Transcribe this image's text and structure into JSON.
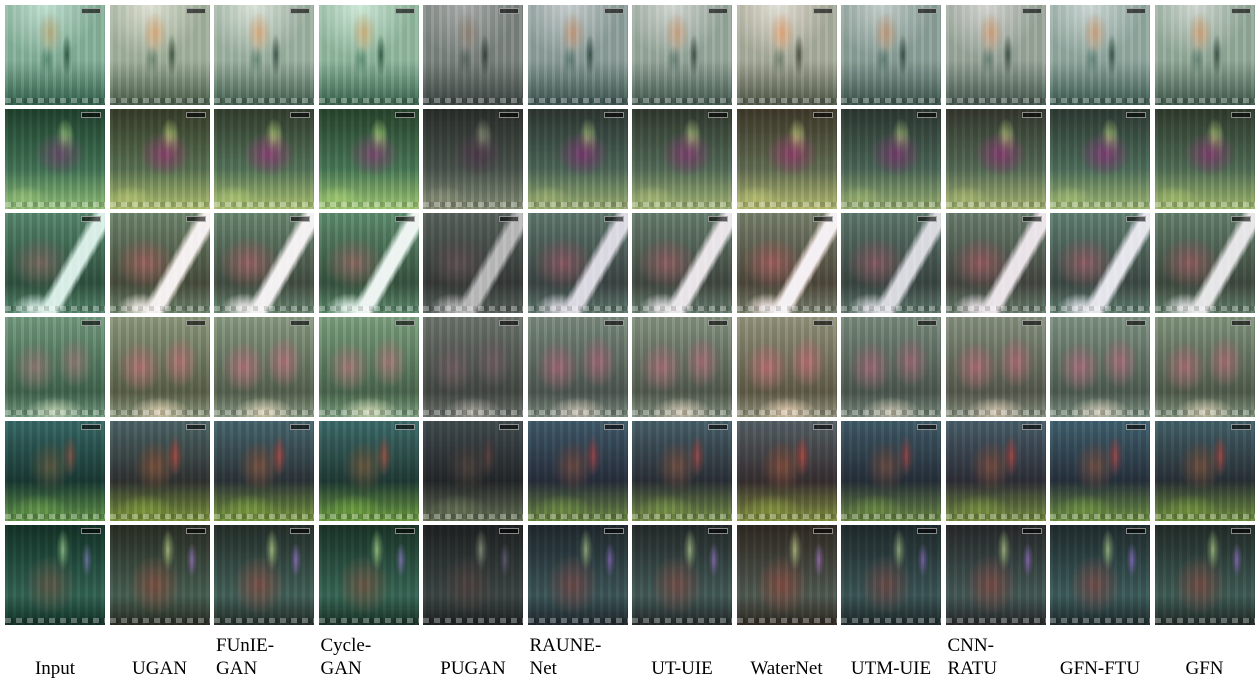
{
  "columns": [
    {
      "id": "input",
      "lines": [
        "Input"
      ],
      "align": "center"
    },
    {
      "id": "ugan",
      "lines": [
        "UGAN"
      ],
      "align": "center"
    },
    {
      "id": "funie",
      "lines": [
        "FUnIE-",
        "GAN"
      ],
      "align": "left"
    },
    {
      "id": "cycle",
      "lines": [
        "Cycle-",
        "GAN"
      ],
      "align": "left"
    },
    {
      "id": "pugan",
      "lines": [
        "PUGAN"
      ],
      "align": "center"
    },
    {
      "id": "raune",
      "lines": [
        "RAUNE-",
        "Net"
      ],
      "align": "left"
    },
    {
      "id": "utuie",
      "lines": [
        "UT-UIE"
      ],
      "align": "center"
    },
    {
      "id": "waternet",
      "lines": [
        "WaterNet"
      ],
      "align": "center"
    },
    {
      "id": "utmuie",
      "lines": [
        "UTM-UIE"
      ],
      "align": "center"
    },
    {
      "id": "cnnratu",
      "lines": [
        "CNN-",
        "RATU"
      ],
      "align": "left"
    },
    {
      "id": "gfnftu",
      "lines": [
        "GFN-FTU"
      ],
      "align": "center"
    },
    {
      "id": "gfn",
      "lines": [
        "GFN"
      ],
      "align": "center"
    }
  ],
  "rows": [
    {
      "id": "row-diver",
      "scene": "diver",
      "colors": [
        "#8fa79a",
        "#5e7f72",
        "#c9a27b",
        "#3d5a4e"
      ]
    },
    {
      "id": "row-coral-1",
      "scene": "coral",
      "colors": [
        "#4b6b55",
        "#7a3d6e",
        "#9bb66a",
        "#2d3a2f"
      ]
    },
    {
      "id": "row-tube",
      "scene": "tube",
      "colors": [
        "#5f7d6c",
        "#8a5a5e",
        "#e6e6ea",
        "#3b4840"
      ]
    },
    {
      "id": "row-coral-2",
      "scene": "coral2",
      "colors": [
        "#7b8f7b",
        "#a06a72",
        "#c7c1a8",
        "#4c5a4c"
      ]
    },
    {
      "id": "row-coral-3",
      "scene": "coral3",
      "colors": [
        "#3f5f6a",
        "#6b4b3e",
        "#6c8f3c",
        "#263038"
      ]
    },
    {
      "id": "row-coral-4",
      "scene": "coral4",
      "colors": [
        "#3b5a56",
        "#6e4b45",
        "#7f9b6a",
        "#1f2b2a"
      ]
    }
  ],
  "methodTints": [
    {
      "id": "input",
      "tint": "#2f7a55",
      "alpha": 0.3,
      "bright": 1.0
    },
    {
      "id": "ugan",
      "tint": "#b38f66",
      "alpha": 0.2,
      "bright": 1.05
    },
    {
      "id": "funie",
      "tint": "#a3907a",
      "alpha": 0.15,
      "bright": 1.05
    },
    {
      "id": "cycle",
      "tint": "#3c8c4c",
      "alpha": 0.18,
      "bright": 1.05
    },
    {
      "id": "pugan",
      "tint": "#3a3a3a",
      "alpha": 0.35,
      "bright": 0.8
    },
    {
      "id": "raune",
      "tint": "#6a5a7a",
      "alpha": 0.18,
      "bright": 0.95
    },
    {
      "id": "utuie",
      "tint": "#a09090",
      "alpha": 0.25,
      "bright": 1.0
    },
    {
      "id": "waternet",
      "tint": "#c0705a",
      "alpha": 0.22,
      "bright": 1.05
    },
    {
      "id": "utmuie",
      "tint": "#808090",
      "alpha": 0.2,
      "bright": 0.95
    },
    {
      "id": "cnnratu",
      "tint": "#9a6a70",
      "alpha": 0.18,
      "bright": 1.0
    },
    {
      "id": "gfnftu",
      "tint": "#6a6a80",
      "alpha": 0.15,
      "bright": 1.0
    },
    {
      "id": "gfn",
      "tint": "#8a8070",
      "alpha": 0.15,
      "bright": 1.0
    }
  ]
}
